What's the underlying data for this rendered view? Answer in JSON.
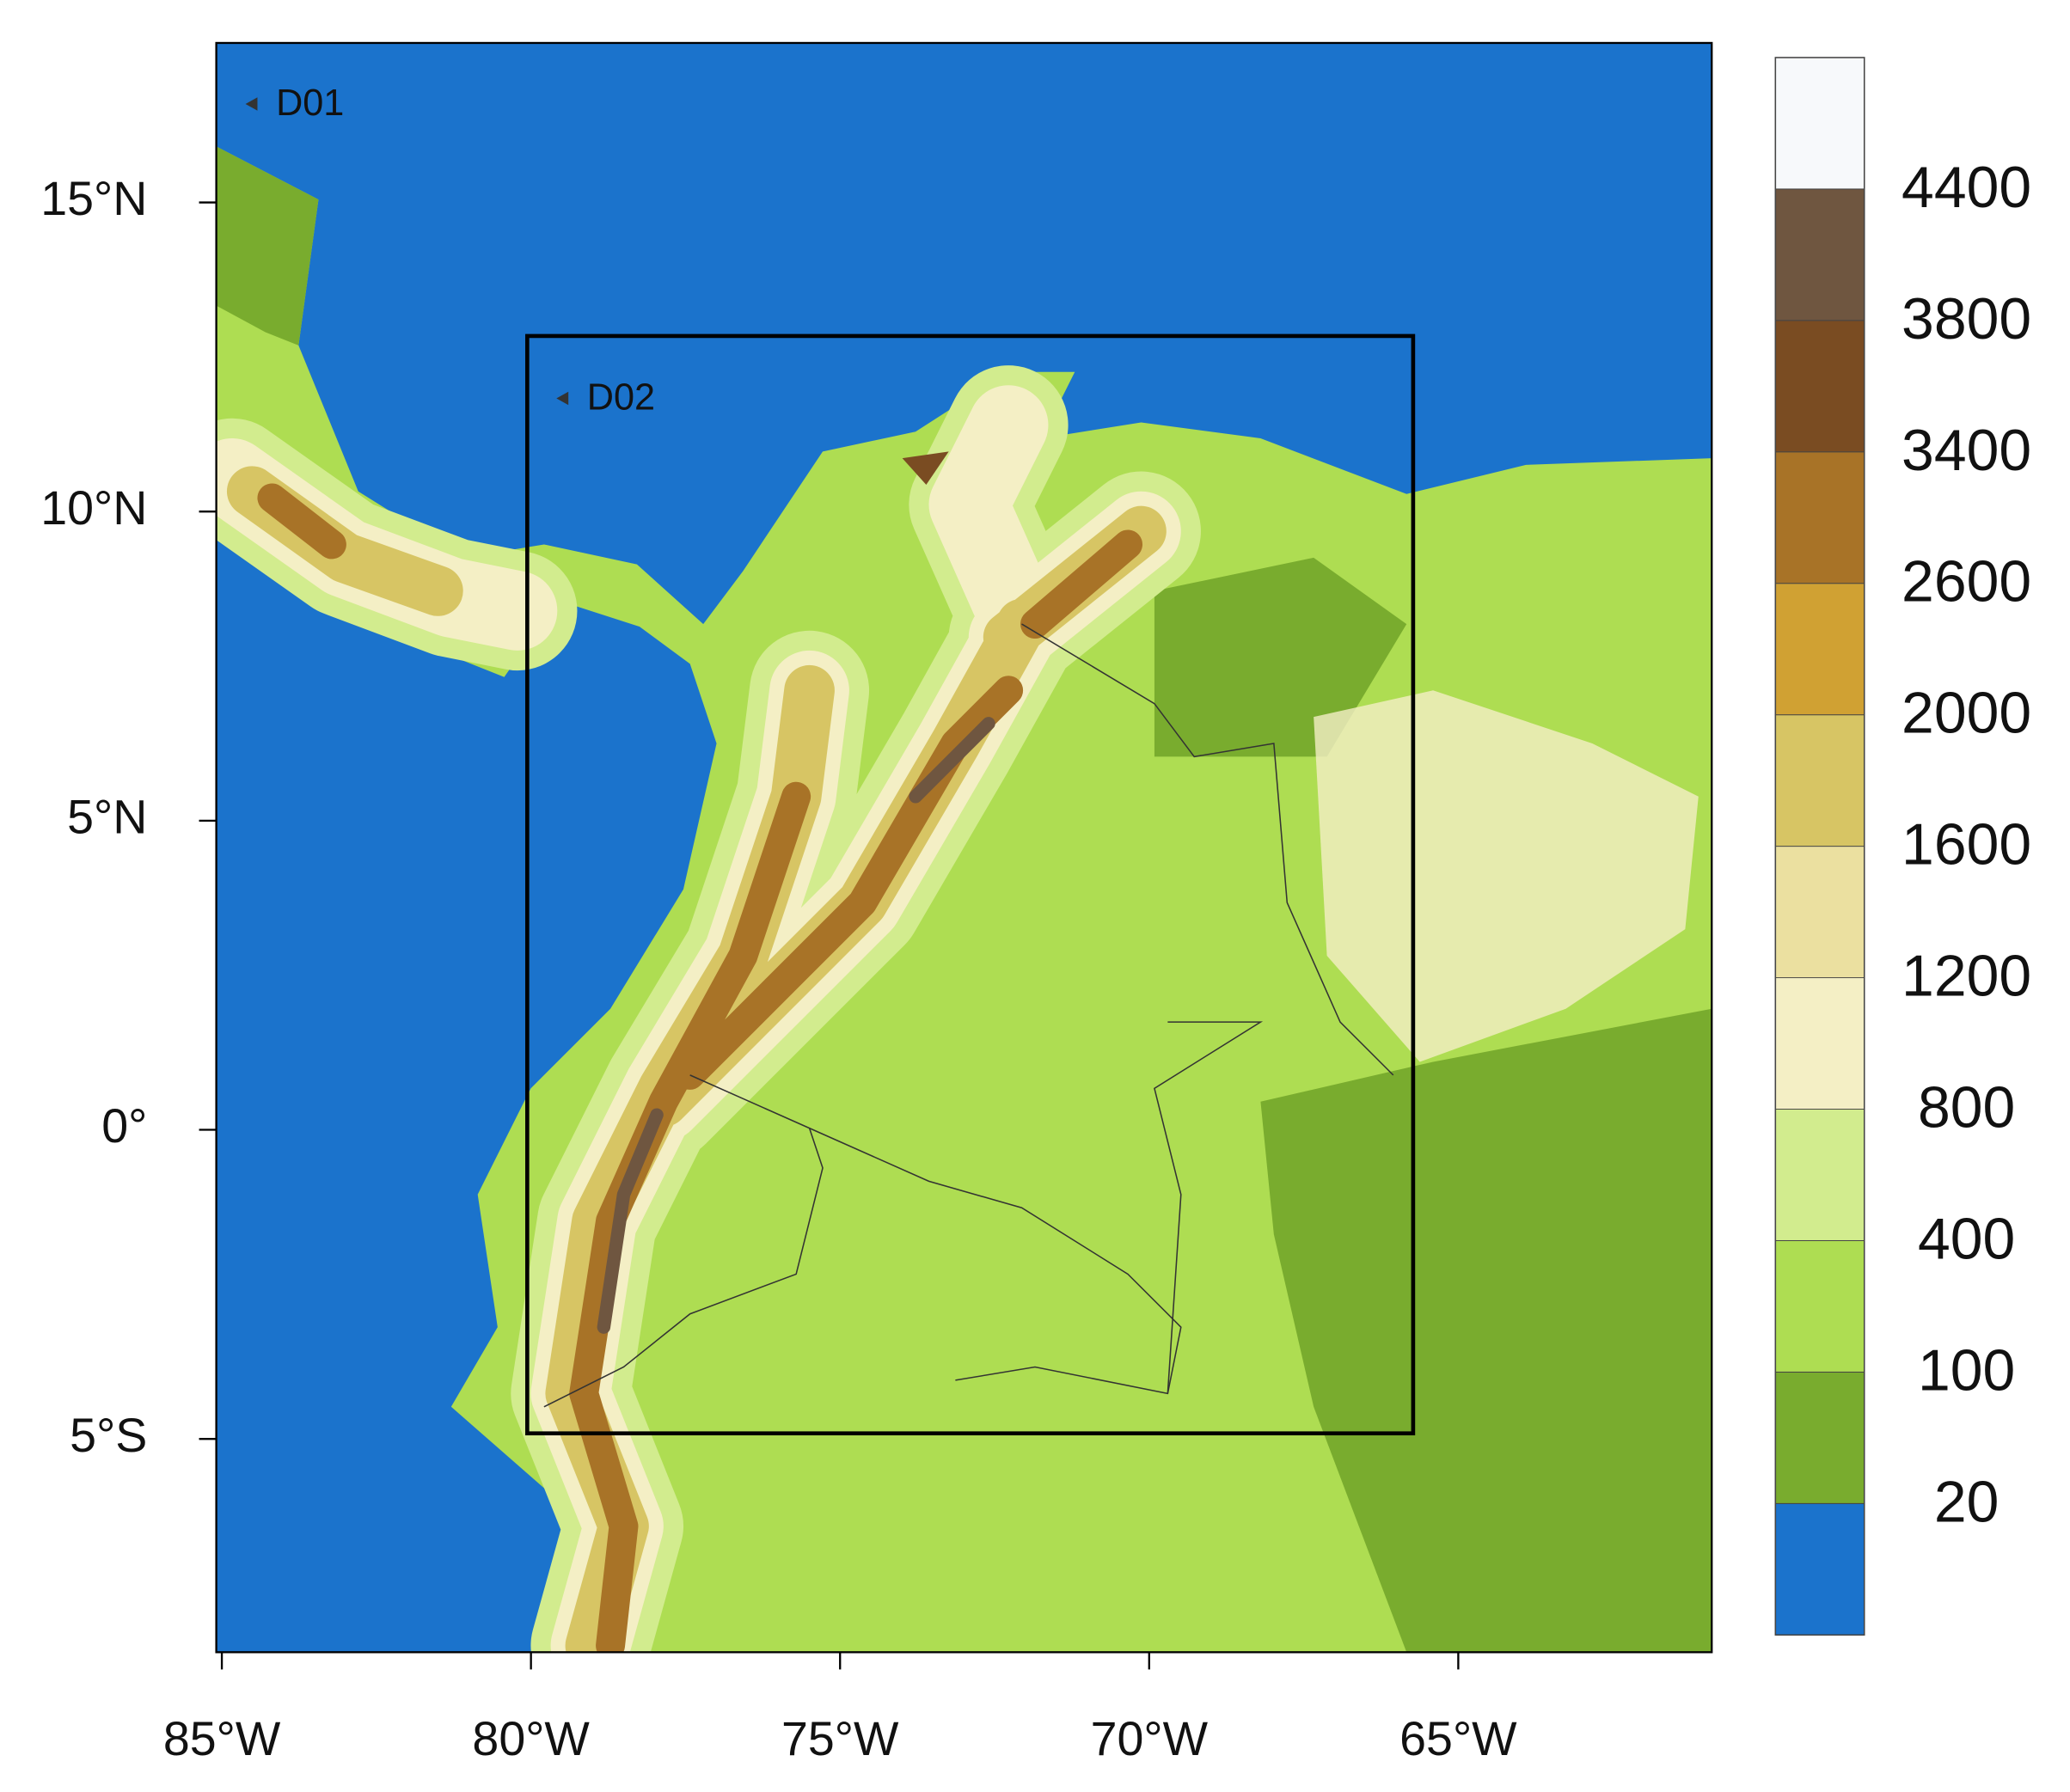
{
  "map": {
    "xlim": [
      -85.09,
      -60.9
    ],
    "ylim": [
      -8.45,
      17.58
    ],
    "xticks": [
      {
        "value": -85,
        "label": "85°W"
      },
      {
        "value": -80,
        "label": "80°W"
      },
      {
        "value": -75,
        "label": "75°W"
      },
      {
        "value": -70,
        "label": "70°W"
      },
      {
        "value": -65,
        "label": "65°W"
      }
    ],
    "yticks": [
      {
        "value": 15,
        "label": "15°N"
      },
      {
        "value": 10,
        "label": "10°N"
      },
      {
        "value": 5,
        "label": "5°N"
      },
      {
        "value": 0,
        "label": "0°"
      },
      {
        "value": -5,
        "label": "5°S"
      }
    ],
    "domains": [
      {
        "label": "D01"
      },
      {
        "label": "D02",
        "xlim": [
          -80.06,
          -65.73
        ],
        "ylim": [
          -4.91,
          12.84
        ]
      }
    ],
    "colorbar": {
      "levels": [
        20,
        100,
        400,
        800,
        1200,
        1600,
        2000,
        2600,
        3400,
        3800,
        4400
      ],
      "colors": [
        "#1b73cc",
        "#79ac2e",
        "#aedd52",
        "#d2ec8e",
        "#f4efc5",
        "#ebe0a0",
        "#d7c564",
        "#d0a133",
        "#a87327",
        "#7a4c22",
        "#6f5640",
        "#f7f9fb"
      ]
    }
  }
}
